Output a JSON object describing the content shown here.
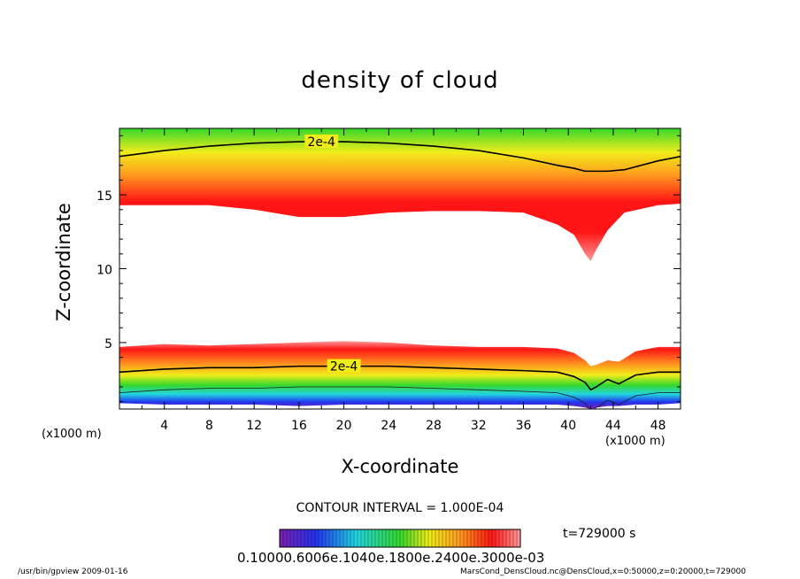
{
  "chart_data": {
    "type": "heatmap",
    "title": "density of cloud",
    "xlabel": "X-coordinate",
    "ylabel": "Z-coordinate",
    "x_unit": "(x1000 m)",
    "xlim": [
      0,
      50
    ],
    "ylim": [
      0.5,
      19.5
    ],
    "xticks": [
      4,
      8,
      12,
      16,
      20,
      24,
      28,
      32,
      36,
      40,
      44,
      48
    ],
    "yticks": [
      5,
      10,
      15
    ],
    "contour_interval_text": "CONTOUR INTERVAL = 1.000E-04",
    "contour_labels": [
      "2e-4",
      "2e-4"
    ],
    "time_text": "t=729000 s",
    "colorbar_labels_text": "0.10000.6006e.1040e.1800e.2400e.3000e-03",
    "upper_layer": {
      "x": [
        0,
        4,
        8,
        12,
        16,
        20,
        24,
        28,
        32,
        36,
        39,
        40.5,
        41.5,
        42,
        42.5,
        43.5,
        45,
        48,
        50
      ],
      "top": [
        19.5,
        19.5,
        19.5,
        19.5,
        19.5,
        19.5,
        19.5,
        19.5,
        19.5,
        19.5,
        19.5,
        19.5,
        19.5,
        19.5,
        19.5,
        19.5,
        19.5,
        19.5,
        19.5
      ],
      "contour_2e4": [
        17.6,
        18.0,
        18.3,
        18.5,
        18.6,
        18.6,
        18.5,
        18.3,
        18.0,
        17.5,
        17.0,
        16.8,
        16.6,
        16.6,
        16.6,
        16.6,
        16.7,
        17.3,
        17.6
      ],
      "bottom": [
        14.3,
        14.3,
        14.3,
        14.0,
        13.5,
        13.5,
        13.8,
        13.9,
        13.9,
        13.8,
        13.0,
        12.3,
        11.0,
        10.5,
        11.3,
        12.6,
        13.8,
        14.3,
        14.4
      ]
    },
    "lower_layer": {
      "x": [
        0,
        4,
        8,
        12,
        16,
        20,
        24,
        28,
        32,
        36,
        39,
        40.5,
        41.5,
        42,
        42.5,
        43.5,
        44.5,
        46,
        48,
        50
      ],
      "top": [
        4.7,
        4.9,
        4.8,
        4.9,
        5.0,
        5.1,
        5.0,
        4.8,
        4.7,
        4.7,
        4.6,
        4.3,
        3.8,
        3.4,
        3.5,
        3.8,
        3.7,
        4.4,
        4.7,
        4.7
      ],
      "contour_2e4": [
        3.0,
        3.2,
        3.3,
        3.3,
        3.4,
        3.4,
        3.4,
        3.3,
        3.2,
        3.1,
        3.0,
        2.7,
        2.3,
        1.8,
        2.0,
        2.5,
        2.2,
        2.8,
        3.0,
        3.0
      ],
      "bottom": [
        0.9,
        0.8,
        0.8,
        0.8,
        0.7,
        0.8,
        0.8,
        0.8,
        0.8,
        0.8,
        0.8,
        0.7,
        0.6,
        0.5,
        0.6,
        0.7,
        0.7,
        0.8,
        0.8,
        0.9
      ]
    },
    "colors": {
      "green": "#34d82b",
      "yellow": "#f0ec1a",
      "orange": "#ff9a1f",
      "red": "#ff1515",
      "pink": "#ff9a9a",
      "cyan": "#22d6e0",
      "blue": "#2233ee",
      "purple": "#7a1fb0"
    }
  },
  "footer": {
    "left": "/usr/bin/gpview   2009-01-16",
    "right": "MarsCond_DensCloud.nc@DensCloud,x=0:50000,z=0:20000,t=729000"
  }
}
